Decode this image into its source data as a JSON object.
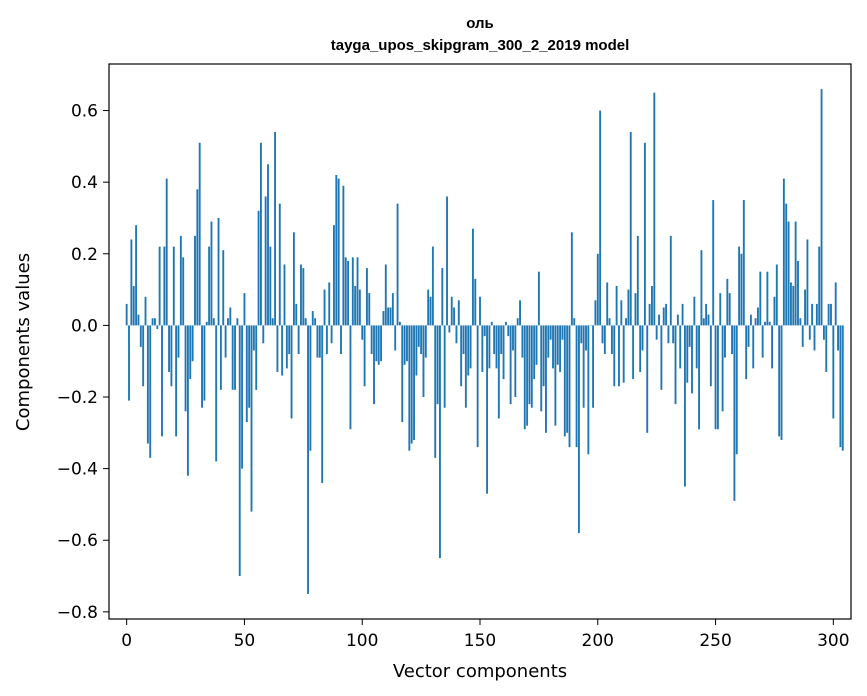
{
  "chart_data": {
    "type": "bar",
    "title": "оль",
    "subtitle": "tayga_upos_skipgram_300_2_2019 model",
    "xlabel": "Vector components",
    "ylabel": "Components values",
    "xlim": [
      -7.5,
      307.5
    ],
    "ylim": [
      -0.82,
      0.73
    ],
    "xticks": [
      0,
      50,
      100,
      150,
      200,
      250,
      300
    ],
    "xtick_labels": [
      "0",
      "50",
      "100",
      "150",
      "200",
      "250",
      "300"
    ],
    "yticks": [
      -0.8,
      -0.6,
      -0.4,
      -0.2,
      0.0,
      0.2,
      0.4,
      0.6
    ],
    "ytick_labels": [
      "−0.8",
      "−0.6",
      "−0.4",
      "−0.2",
      "0.0",
      "0.2",
      "0.4",
      "0.6"
    ],
    "bar_color": "#1f77b4",
    "grid": false,
    "values": [
      0.06,
      -0.21,
      0.24,
      0.11,
      0.28,
      0.03,
      -0.06,
      -0.17,
      0.08,
      -0.33,
      -0.37,
      0.02,
      0.02,
      -0.01,
      0.22,
      -0.31,
      0.22,
      0.41,
      -0.13,
      -0.17,
      0.22,
      -0.31,
      -0.09,
      0.25,
      0.19,
      -0.24,
      -0.42,
      -0.15,
      -0.1,
      0.25,
      0.38,
      0.51,
      -0.23,
      -0.21,
      0.01,
      0.22,
      0.29,
      0.02,
      -0.38,
      0.3,
      -0.18,
      0.21,
      -0.09,
      0.02,
      0.05,
      -0.18,
      -0.18,
      0.02,
      -0.7,
      -0.4,
      0.09,
      -0.27,
      -0.23,
      -0.52,
      -0.07,
      -0.18,
      0.32,
      0.51,
      -0.05,
      0.36,
      0.45,
      0.22,
      0.02,
      0.54,
      -0.13,
      0.34,
      -0.14,
      0.17,
      -0.12,
      -0.08,
      -0.26,
      0.26,
      0.06,
      -0.08,
      0.17,
      0.16,
      0.02,
      -0.75,
      -0.35,
      0.04,
      0.02,
      -0.09,
      -0.09,
      -0.44,
      0.1,
      -0.08,
      0.12,
      -0.05,
      0.28,
      0.42,
      0.41,
      -0.08,
      0.39,
      0.19,
      0.18,
      -0.29,
      0.19,
      0.11,
      0.19,
      0.1,
      -0.04,
      -0.17,
      0.16,
      0.09,
      -0.08,
      -0.22,
      -0.1,
      -0.11,
      -0.1,
      0.04,
      0.17,
      0.05,
      0.05,
      0.09,
      -0.07,
      0.34,
      0.01,
      -0.27,
      -0.11,
      -0.1,
      -0.35,
      -0.33,
      -0.32,
      -0.14,
      -0.06,
      -0.08,
      -0.2,
      -0.09,
      0.1,
      0.08,
      0.22,
      -0.37,
      -0.22,
      -0.65,
      0.16,
      -0.23,
      0.36,
      -0.02,
      0.08,
      0.05,
      -0.05,
      0.07,
      -0.17,
      -0.08,
      -0.23,
      -0.14,
      -0.12,
      0.27,
      0.13,
      -0.34,
      0.08,
      -0.13,
      -0.03,
      -0.47,
      -0.12,
      0.01,
      -0.08,
      -0.12,
      -0.26,
      -0.08,
      -0.15,
      0.01,
      -0.03,
      -0.22,
      -0.07,
      -0.2,
      0.02,
      0.07,
      -0.09,
      -0.29,
      -0.28,
      -0.22,
      -0.23,
      -0.15,
      -0.11,
      0.15,
      -0.24,
      -0.17,
      -0.3,
      -0.09,
      -0.04,
      -0.12,
      -0.28,
      -0.11,
      -0.13,
      -0.04,
      -0.31,
      -0.3,
      -0.34,
      0.26,
      0.02,
      -0.34,
      -0.58,
      -0.05,
      -0.23,
      -0.07,
      -0.36,
      0.0,
      -0.23,
      0.07,
      0.2,
      0.6,
      -0.05,
      -0.08,
      0.12,
      0.02,
      -0.08,
      -0.17,
      0.11,
      -0.17,
      0.07,
      -0.16,
      0.02,
      0.1,
      0.54,
      -0.15,
      0.09,
      0.25,
      -0.13,
      -0.07,
      0.51,
      -0.3,
      0.06,
      0.11,
      0.65,
      -0.04,
      0.03,
      -0.18,
      0.05,
      0.06,
      -0.05,
      0.25,
      -0.05,
      -0.22,
      0.03,
      -0.12,
      0.06,
      -0.45,
      -0.16,
      -0.06,
      -0.19,
      0.08,
      -0.12,
      -0.29,
      0.21,
      0.02,
      0.06,
      0.03,
      -0.17,
      0.35,
      -0.29,
      -0.29,
      0.09,
      -0.24,
      -0.09,
      0.13,
      0.09,
      -0.08,
      -0.49,
      -0.36,
      0.22,
      0.2,
      0.35,
      -0.15,
      -0.06,
      0.03,
      -0.12,
      0.02,
      0.05,
      0.15,
      -0.09,
      0.01,
      0.15,
      0.01,
      -0.12,
      0.08,
      0.17,
      -0.31,
      -0.32,
      0.41,
      0.34,
      0.29,
      0.12,
      0.11,
      0.29,
      0.18,
      0.02,
      -0.06,
      0.1,
      0.24,
      -0.04,
      0.06,
      -0.07,
      0.06,
      0.22,
      0.66,
      -0.04,
      -0.13,
      0.06,
      0.06,
      -0.26,
      0.12,
      -0.07,
      -0.34,
      -0.35
    ]
  }
}
